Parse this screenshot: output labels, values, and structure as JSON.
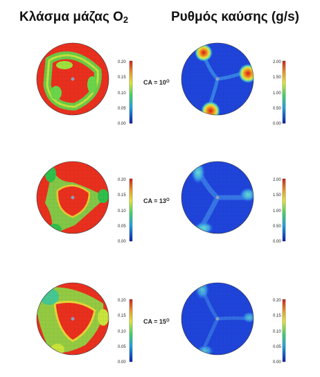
{
  "titles": {
    "left_main": "Κλάσμα μάζας O",
    "left_sub": "2",
    "right": "Ρυθμός καύσης (g/s)"
  },
  "rows": [
    {
      "ca_label": "CA = 10",
      "ca_sup": "O",
      "left_ticks": [
        "0.20",
        "0.15",
        "0.10",
        "0.05",
        "0.00"
      ],
      "right_ticks": [
        "2.00",
        "1.50",
        "1.00",
        "0.50",
        "0.00"
      ]
    },
    {
      "ca_label": "CA = 13",
      "ca_sup": "O",
      "left_ticks": [
        "0.20",
        "0.15",
        "0.10",
        "0.05",
        "0.00"
      ],
      "right_ticks": [
        "2.00",
        "1.50",
        "1.00",
        "0.50",
        "0.00"
      ]
    },
    {
      "ca_label": "CA = 15",
      "ca_sup": "O",
      "left_ticks": [
        "0.20",
        "0.15",
        "0.10",
        "0.05",
        "0.00"
      ],
      "right_ticks": [
        "0.20",
        "0.15",
        "0.10",
        "0.05",
        "0.00"
      ]
    }
  ],
  "colors": {
    "rich": "#e8311f",
    "mid": "#f2e93a",
    "lean": "#3fd14a",
    "burn_bg": "#1c3fd8",
    "burn_hot": "#e8201a"
  }
}
